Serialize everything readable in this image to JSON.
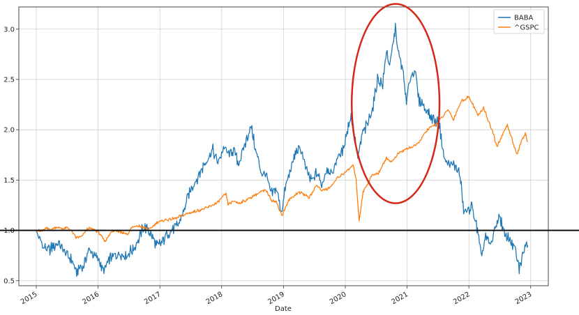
{
  "chart_data": {
    "type": "line",
    "title": "",
    "xlabel": "Date",
    "ylabel": "",
    "x_ticks": [
      "2015",
      "2016",
      "2017",
      "2018",
      "2019",
      "2020",
      "2021",
      "2022",
      "2023"
    ],
    "y_ticks": [
      "0.5",
      "1.0",
      "1.5",
      "2.0",
      "2.5",
      "3.0"
    ],
    "xlim": [
      "2014-09-20",
      "2023-04-15"
    ],
    "ylim": [
      0.45,
      3.22
    ],
    "grid": true,
    "legend_position": "top-right",
    "reference_line": {
      "y": 1.0,
      "color": "#000000"
    },
    "annotation": {
      "shape": "ellipse",
      "color": "#d62818",
      "center_date": "2020-10-25",
      "center_value": 2.26,
      "span_years": 1.42,
      "span_value": 1.98
    },
    "series": [
      {
        "name": "BABA",
        "color": "#1f77b4",
        "points": [
          [
            "2015-01-02",
            1.0
          ],
          [
            "2015-01-20",
            0.9
          ],
          [
            "2015-02-15",
            0.83
          ],
          [
            "2015-03-15",
            0.8
          ],
          [
            "2015-04-15",
            0.84
          ],
          [
            "2015-05-10",
            0.88
          ],
          [
            "2015-06-05",
            0.82
          ],
          [
            "2015-07-01",
            0.75
          ],
          [
            "2015-08-01",
            0.7
          ],
          [
            "2015-08-24",
            0.58
          ],
          [
            "2015-09-15",
            0.62
          ],
          [
            "2015-10-10",
            0.66
          ],
          [
            "2015-11-05",
            0.8
          ],
          [
            "2015-12-01",
            0.77
          ],
          [
            "2015-12-20",
            0.75
          ],
          [
            "2016-01-10",
            0.69
          ],
          [
            "2016-01-28",
            0.6
          ],
          [
            "2016-02-20",
            0.65
          ],
          [
            "2016-03-15",
            0.73
          ],
          [
            "2016-04-20",
            0.75
          ],
          [
            "2016-05-20",
            0.77
          ],
          [
            "2016-06-20",
            0.76
          ],
          [
            "2016-07-25",
            0.81
          ],
          [
            "2016-08-25",
            0.9
          ],
          [
            "2016-09-20",
            1.01
          ],
          [
            "2016-10-20",
            1.03
          ],
          [
            "2016-11-15",
            0.93
          ],
          [
            "2016-12-15",
            0.85
          ],
          [
            "2017-01-10",
            0.87
          ],
          [
            "2017-02-10",
            0.96
          ],
          [
            "2017-03-15",
            1.0
          ],
          [
            "2017-04-15",
            1.05
          ],
          [
            "2017-05-15",
            1.15
          ],
          [
            "2017-06-10",
            1.3
          ],
          [
            "2017-07-10",
            1.43
          ],
          [
            "2017-08-10",
            1.52
          ],
          [
            "2017-09-10",
            1.62
          ],
          [
            "2017-10-05",
            1.7
          ],
          [
            "2017-11-10",
            1.8
          ],
          [
            "2017-12-10",
            1.67
          ],
          [
            "2018-01-15",
            1.82
          ],
          [
            "2018-02-15",
            1.75
          ],
          [
            "2018-03-15",
            1.81
          ],
          [
            "2018-04-10",
            1.66
          ],
          [
            "2018-05-10",
            1.8
          ],
          [
            "2018-06-10",
            1.98
          ],
          [
            "2018-06-25",
            2.02
          ],
          [
            "2018-07-20",
            1.8
          ],
          [
            "2018-08-20",
            1.58
          ],
          [
            "2018-09-20",
            1.55
          ],
          [
            "2018-10-20",
            1.35
          ],
          [
            "2018-11-20",
            1.42
          ],
          [
            "2018-12-20",
            1.18
          ],
          [
            "2019-01-15",
            1.45
          ],
          [
            "2019-02-15",
            1.62
          ],
          [
            "2019-03-15",
            1.77
          ],
          [
            "2019-04-15",
            1.82
          ],
          [
            "2019-05-15",
            1.6
          ],
          [
            "2019-06-15",
            1.48
          ],
          [
            "2019-07-15",
            1.58
          ],
          [
            "2019-08-15",
            1.45
          ],
          [
            "2019-09-15",
            1.62
          ],
          [
            "2019-10-15",
            1.55
          ],
          [
            "2019-11-15",
            1.72
          ],
          [
            "2019-12-15",
            1.78
          ],
          [
            "2020-01-15",
            2.0
          ],
          [
            "2020-02-05",
            2.15
          ],
          [
            "2020-02-25",
            1.95
          ],
          [
            "2020-03-16",
            1.72
          ],
          [
            "2020-04-10",
            1.95
          ],
          [
            "2020-05-10",
            2.05
          ],
          [
            "2020-06-10",
            2.2
          ],
          [
            "2020-07-10",
            2.5
          ],
          [
            "2020-08-10",
            2.45
          ],
          [
            "2020-09-01",
            2.8
          ],
          [
            "2020-09-20",
            2.62
          ],
          [
            "2020-10-10",
            2.85
          ],
          [
            "2020-10-27",
            3.03
          ],
          [
            "2020-11-05",
            2.8
          ],
          [
            "2020-11-20",
            2.7
          ],
          [
            "2020-12-10",
            2.55
          ],
          [
            "2020-12-28",
            2.25
          ],
          [
            "2021-01-15",
            2.5
          ],
          [
            "2021-02-17",
            2.6
          ],
          [
            "2021-03-10",
            2.3
          ],
          [
            "2021-04-10",
            2.25
          ],
          [
            "2021-05-10",
            2.15
          ],
          [
            "2021-06-10",
            2.1
          ],
          [
            "2021-07-10",
            2.05
          ],
          [
            "2021-08-10",
            1.7
          ],
          [
            "2021-09-10",
            1.65
          ],
          [
            "2021-10-10",
            1.65
          ],
          [
            "2021-11-10",
            1.55
          ],
          [
            "2021-12-01",
            1.2
          ],
          [
            "2021-12-20",
            1.18
          ],
          [
            "2022-01-15",
            1.25
          ],
          [
            "2022-02-10",
            1.1
          ],
          [
            "2022-03-15",
            0.75
          ],
          [
            "2022-04-10",
            0.93
          ],
          [
            "2022-05-10",
            0.85
          ],
          [
            "2022-06-10",
            1.05
          ],
          [
            "2022-07-01",
            1.15
          ],
          [
            "2022-08-01",
            0.95
          ],
          [
            "2022-09-01",
            0.92
          ],
          [
            "2022-10-01",
            0.8
          ],
          [
            "2022-10-25",
            0.62
          ],
          [
            "2022-11-10",
            0.72
          ],
          [
            "2022-12-01",
            0.87
          ],
          [
            "2022-12-15",
            0.85
          ]
        ]
      },
      {
        "name": "^GSPC",
        "color": "#ff7f0e",
        "points": [
          [
            "2015-01-02",
            1.0
          ],
          [
            "2015-02-01",
            0.99
          ],
          [
            "2015-03-01",
            1.02
          ],
          [
            "2015-04-01",
            1.01
          ],
          [
            "2015-05-01",
            1.03
          ],
          [
            "2015-06-01",
            1.02
          ],
          [
            "2015-07-15",
            1.02
          ],
          [
            "2015-08-24",
            0.93
          ],
          [
            "2015-09-28",
            0.94
          ],
          [
            "2015-11-01",
            1.02
          ],
          [
            "2015-12-01",
            1.01
          ],
          [
            "2015-12-31",
            0.99
          ],
          [
            "2016-02-11",
            0.89
          ],
          [
            "2016-03-15",
            0.98
          ],
          [
            "2016-04-20",
            1.0
          ],
          [
            "2016-06-27",
            0.96
          ],
          [
            "2016-07-15",
            1.03
          ],
          [
            "2016-09-01",
            1.04
          ],
          [
            "2016-11-03",
            1.01
          ],
          [
            "2016-12-15",
            1.08
          ],
          [
            "2017-02-01",
            1.1
          ],
          [
            "2017-04-01",
            1.12
          ],
          [
            "2017-06-01",
            1.16
          ],
          [
            "2017-08-01",
            1.19
          ],
          [
            "2017-10-01",
            1.22
          ],
          [
            "2017-12-01",
            1.27
          ],
          [
            "2018-01-26",
            1.36
          ],
          [
            "2018-02-08",
            1.26
          ],
          [
            "2018-03-15",
            1.29
          ],
          [
            "2018-04-15",
            1.27
          ],
          [
            "2018-06-15",
            1.32
          ],
          [
            "2018-08-15",
            1.38
          ],
          [
            "2018-09-20",
            1.4
          ],
          [
            "2018-10-25",
            1.3
          ],
          [
            "2018-11-20",
            1.28
          ],
          [
            "2018-12-24",
            1.15
          ],
          [
            "2019-02-01",
            1.3
          ],
          [
            "2019-04-01",
            1.38
          ],
          [
            "2019-05-15",
            1.35
          ],
          [
            "2019-06-01",
            1.32
          ],
          [
            "2019-07-15",
            1.45
          ],
          [
            "2019-08-15",
            1.4
          ],
          [
            "2019-10-01",
            1.42
          ],
          [
            "2019-11-15",
            1.52
          ],
          [
            "2020-01-10",
            1.59
          ],
          [
            "2020-02-19",
            1.65
          ],
          [
            "2020-03-05",
            1.5
          ],
          [
            "2020-03-23",
            1.1
          ],
          [
            "2020-04-15",
            1.38
          ],
          [
            "2020-06-08",
            1.55
          ],
          [
            "2020-07-15",
            1.57
          ],
          [
            "2020-09-01",
            1.72
          ],
          [
            "2020-10-01",
            1.68
          ],
          [
            "2020-11-15",
            1.77
          ],
          [
            "2021-01-10",
            1.82
          ],
          [
            "2021-03-01",
            1.85
          ],
          [
            "2021-05-01",
            2.0
          ],
          [
            "2021-07-01",
            2.07
          ],
          [
            "2021-09-01",
            2.2
          ],
          [
            "2021-10-01",
            2.1
          ],
          [
            "2021-11-15",
            2.28
          ],
          [
            "2022-01-03",
            2.33
          ],
          [
            "2022-02-24",
            2.14
          ],
          [
            "2022-03-29",
            2.22
          ],
          [
            "2022-05-20",
            1.98
          ],
          [
            "2022-06-16",
            1.83
          ],
          [
            "2022-08-16",
            2.05
          ],
          [
            "2022-09-30",
            1.82
          ],
          [
            "2022-10-12",
            1.75
          ],
          [
            "2022-11-15",
            1.92
          ],
          [
            "2022-12-01",
            1.96
          ],
          [
            "2022-12-15",
            1.88
          ]
        ]
      }
    ]
  }
}
